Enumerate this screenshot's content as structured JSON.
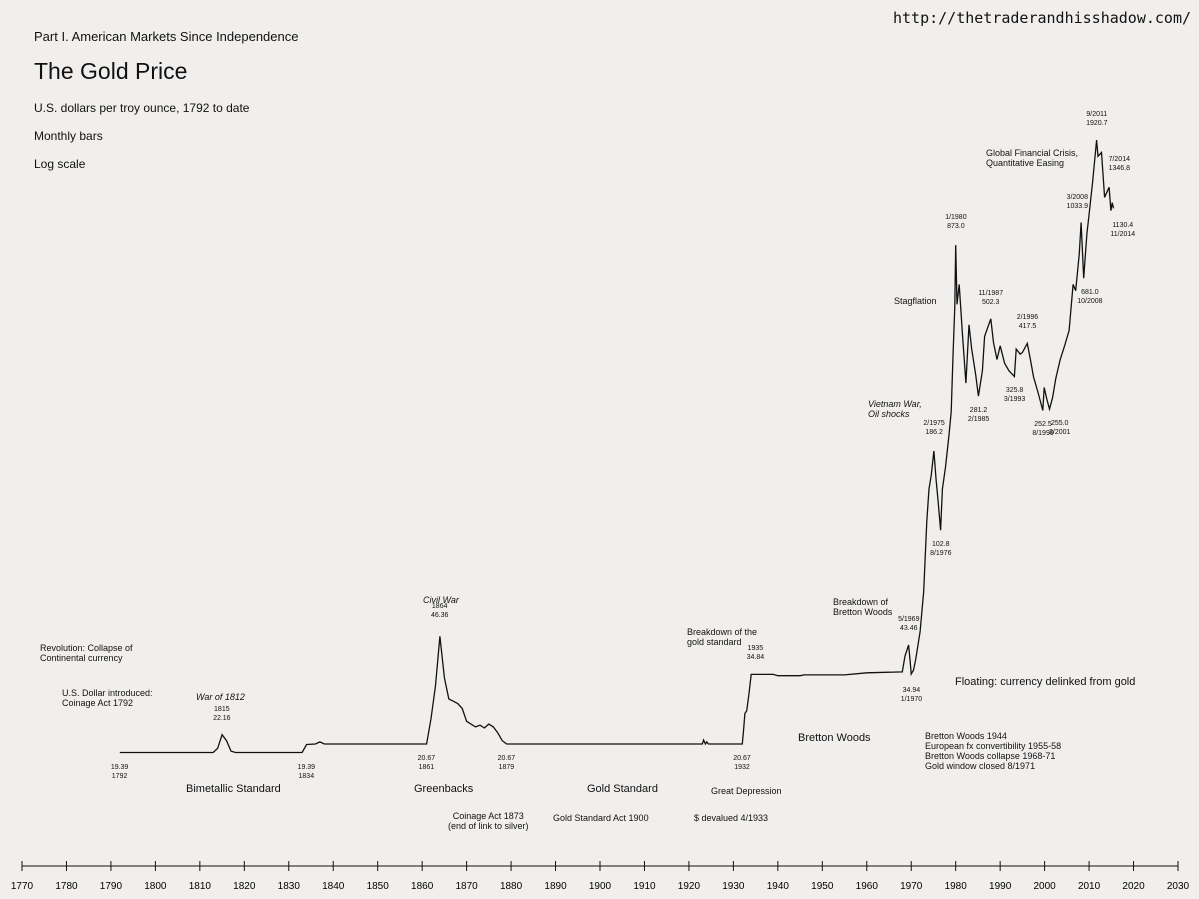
{
  "source_url": "http://thetraderandhisshadow.com/",
  "header": {
    "part": "Part I. American Markets Since Independence",
    "title": "The Gold Price",
    "subtitle": "U.S. dollars per troy ounce, 1792 to date",
    "note1": "Monthly bars",
    "note2": "Log scale"
  },
  "colors": {
    "background": "#f1efed",
    "line": "#111111"
  },
  "annotations": {
    "revolution": "Revolution: Collapse of\nContinental currency",
    "usd_intro": "U.S. Dollar introduced:\nCoinage Act 1792",
    "war1812": "War of 1812",
    "civil_war": "Civil War",
    "breakdown_gold": "Breakdown of the\ngold standard",
    "breakdown_bw": "Breakdown of\nBretton Woods",
    "vietnam": "Vietnam War,\nOil shocks",
    "stagflation": "Stagflation",
    "gfc": "Global Financial Crisis,\nQuantitative Easing",
    "floating": "Floating: currency delinked from gold",
    "bretton_woods": "Bretton Woods",
    "bw_notes": "Bretton Woods 1944\nEuropean fx convertibility 1955-58\nBretton Woods collapse 1968-71\nGold window closed 8/1971",
    "bimetallic": "Bimetallic Standard",
    "greenbacks": "Greenbacks",
    "gold_standard": "Gold Standard",
    "great_depression": "Great Depression",
    "coinage_1873": "Coinage Act 1873\n(end of link to silver)",
    "gold_std_act": "Gold Standard Act 1900",
    "devalued": "$ devalued 4/1933"
  },
  "data_labels": [
    {
      "text": "19.39\n1792",
      "x": 1792,
      "y": 19.39
    },
    {
      "text": "1815\n22.16",
      "x": 1815,
      "y": 22.16
    },
    {
      "text": "19.39\n1834",
      "x": 1834,
      "y": 19.39
    },
    {
      "text": "1864\n46.36",
      "x": 1864,
      "y": 46.36
    },
    {
      "text": "20.67\n1861",
      "x": 1861,
      "y": 20.67
    },
    {
      "text": "20.67\n1879",
      "x": 1879,
      "y": 20.67
    },
    {
      "text": "1935\n34.84",
      "x": 1935,
      "y": 34.84
    },
    {
      "text": "20.67\n1932",
      "x": 1932,
      "y": 20.67
    },
    {
      "text": "5/1969\n43.46",
      "x": 1969.4,
      "y": 43.46
    },
    {
      "text": "34.94\n1/1970",
      "x": 1970.0,
      "y": 34.94
    },
    {
      "text": "2/1975\n186.2",
      "x": 1975.1,
      "y": 186.2
    },
    {
      "text": "102.8\n8/1976",
      "x": 1976.6,
      "y": 102.8
    },
    {
      "text": "1/1980\n873.0",
      "x": 1980.0,
      "y": 873.0
    },
    {
      "text": "281.2\n2/1985",
      "x": 1985.1,
      "y": 281.2
    },
    {
      "text": "11/1987\n502.3",
      "x": 1987.9,
      "y": 502.3
    },
    {
      "text": "325.8\n3/1993",
      "x": 1993.2,
      "y": 325.8
    },
    {
      "text": "2/1996\n417.5",
      "x": 1996.1,
      "y": 417.5
    },
    {
      "text": "252.5\n8/1999",
      "x": 1999.6,
      "y": 252.5
    },
    {
      "text": "255.0\n2/2001",
      "x": 2001.1,
      "y": 255.0
    },
    {
      "text": "3/2008\n1033.9",
      "x": 2008.2,
      "y": 1033.9
    },
    {
      "text": "681.0\n10/2008",
      "x": 2008.8,
      "y": 681.0
    },
    {
      "text": "9/2011\n1920.7",
      "x": 2011.7,
      "y": 1920.7
    },
    {
      "text": "7/2014\n1346.8",
      "x": 2014.5,
      "y": 1346.8
    },
    {
      "text": "1130.4\n11/2014",
      "x": 2014.9,
      "y": 1130.4
    }
  ],
  "chart_data": {
    "type": "line",
    "log_scale": true,
    "grid": false,
    "xlim": [
      1770,
      2030
    ],
    "x_ticks": [
      1770,
      1780,
      1790,
      1800,
      1810,
      1820,
      1830,
      1840,
      1850,
      1860,
      1870,
      1880,
      1890,
      1900,
      1910,
      1920,
      1930,
      1940,
      1950,
      1960,
      1970,
      1980,
      1990,
      2000,
      2010,
      2020,
      2030
    ],
    "series": [
      {
        "points": [
          [
            1792,
            19.39
          ],
          [
            1813,
            19.39
          ],
          [
            1814,
            20.0
          ],
          [
            1815,
            22.16
          ],
          [
            1816,
            21.2
          ],
          [
            1817,
            19.6
          ],
          [
            1818,
            19.39
          ],
          [
            1833,
            19.39
          ],
          [
            1834,
            20.6
          ],
          [
            1836,
            20.67
          ],
          [
            1837,
            21.0
          ],
          [
            1838,
            20.67
          ],
          [
            1840,
            20.67
          ],
          [
            1861,
            20.67
          ],
          [
            1862,
            25.0
          ],
          [
            1863,
            32.0
          ],
          [
            1864,
            46.36
          ],
          [
            1865,
            34.0
          ],
          [
            1866,
            29.0
          ],
          [
            1867,
            28.5
          ],
          [
            1868,
            28.0
          ],
          [
            1869,
            27.0
          ],
          [
            1870,
            24.5
          ],
          [
            1872,
            23.5
          ],
          [
            1873,
            23.8
          ],
          [
            1874,
            23.3
          ],
          [
            1875,
            24.0
          ],
          [
            1876,
            23.5
          ],
          [
            1877,
            22.5
          ],
          [
            1878,
            21.2
          ],
          [
            1879,
            20.67
          ],
          [
            1923,
            20.67
          ],
          [
            1923.3,
            21.3
          ],
          [
            1923.7,
            20.67
          ],
          [
            1924,
            21.0
          ],
          [
            1924.4,
            20.67
          ],
          [
            1932,
            20.67
          ],
          [
            1932.3,
            23.0
          ],
          [
            1932.6,
            26.0
          ],
          [
            1933,
            26.5
          ],
          [
            1933.5,
            30.0
          ],
          [
            1934,
            34.84
          ],
          [
            1935,
            34.84
          ],
          [
            1939,
            34.84
          ],
          [
            1940,
            34.5
          ],
          [
            1945,
            34.5
          ],
          [
            1946,
            34.71
          ],
          [
            1955,
            34.71
          ],
          [
            1960,
            35.27
          ],
          [
            1968,
            35.5
          ],
          [
            1968.6,
            40.0
          ],
          [
            1969.4,
            43.46
          ],
          [
            1969.8,
            38.0
          ],
          [
            1970.0,
            34.94
          ],
          [
            1970.5,
            36.0
          ],
          [
            1971,
            39.0
          ],
          [
            1972,
            48.0
          ],
          [
            1972.8,
            65.0
          ],
          [
            1973.5,
            110.0
          ],
          [
            1974,
            140.0
          ],
          [
            1974.5,
            155.0
          ],
          [
            1975.1,
            186.2
          ],
          [
            1975.6,
            150.0
          ],
          [
            1976,
            130.0
          ],
          [
            1976.6,
            102.8
          ],
          [
            1977,
            140.0
          ],
          [
            1977.7,
            165.0
          ],
          [
            1978.5,
            210.0
          ],
          [
            1979,
            250.0
          ],
          [
            1979.4,
            380.0
          ],
          [
            1979.8,
            550.0
          ],
          [
            1980.0,
            873.0
          ],
          [
            1980.3,
            560.0
          ],
          [
            1980.8,
            650.0
          ],
          [
            1981.5,
            450.0
          ],
          [
            1982.3,
            310.0
          ],
          [
            1983,
            480.0
          ],
          [
            1983.6,
            400.0
          ],
          [
            1984.5,
            330.0
          ],
          [
            1985.1,
            281.2
          ],
          [
            1986,
            340.0
          ],
          [
            1986.5,
            440.0
          ],
          [
            1987.9,
            502.3
          ],
          [
            1988.5,
            420.0
          ],
          [
            1989.3,
            370.0
          ],
          [
            1990,
            410.0
          ],
          [
            1991,
            360.0
          ],
          [
            1992,
            340.0
          ],
          [
            1993.2,
            325.8
          ],
          [
            1993.6,
            400.0
          ],
          [
            1994.5,
            385.0
          ],
          [
            1995,
            390.0
          ],
          [
            1996.1,
            417.5
          ],
          [
            1996.8,
            370.0
          ],
          [
            1997.5,
            325.0
          ],
          [
            1998.5,
            290.0
          ],
          [
            1999.6,
            252.5
          ],
          [
            1999.9,
            300.0
          ],
          [
            2000.5,
            275.0
          ],
          [
            2001.1,
            255.0
          ],
          [
            2001.8,
            278.0
          ],
          [
            2002.5,
            320.0
          ],
          [
            2003.5,
            370.0
          ],
          [
            2004.5,
            410.0
          ],
          [
            2005.5,
            460.0
          ],
          [
            2006.4,
            650.0
          ],
          [
            2007,
            620.0
          ],
          [
            2007.8,
            820.0
          ],
          [
            2008.2,
            1033.9
          ],
          [
            2008.8,
            681.0
          ],
          [
            2009.5,
            950.0
          ],
          [
            2010,
            1100.0
          ],
          [
            2010.8,
            1400.0
          ],
          [
            2011.7,
            1920.7
          ],
          [
            2012,
            1700.0
          ],
          [
            2012.8,
            1750.0
          ],
          [
            2013.5,
            1250.0
          ],
          [
            2014.5,
            1346.8
          ],
          [
            2014.9,
            1130.4
          ],
          [
            2015.2,
            1200.0
          ],
          [
            2015.5,
            1150.0
          ]
        ]
      }
    ]
  }
}
